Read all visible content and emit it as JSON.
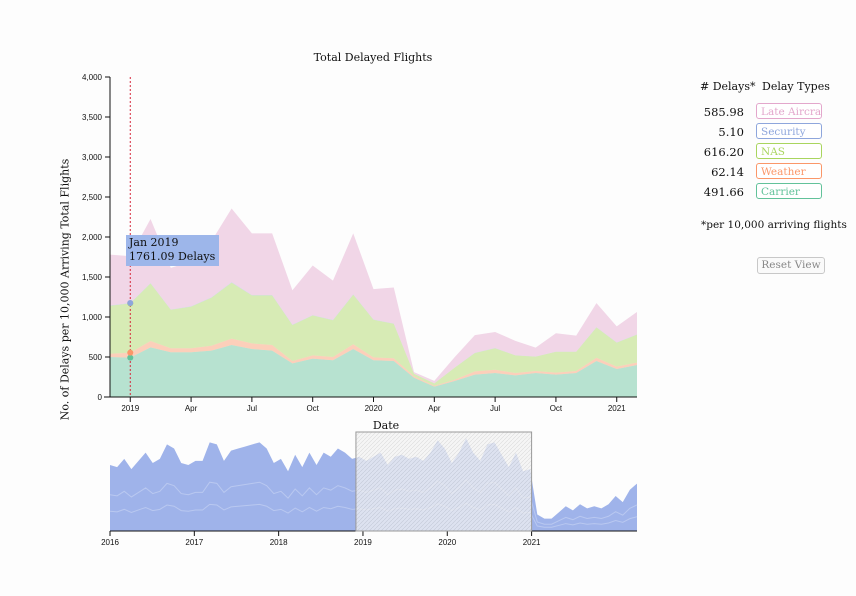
{
  "title": "Total Delayed Flights",
  "xlabel": "Date",
  "ylabel": "No. of Delays per 10,000 Arriving Total Flights",
  "legend": {
    "count_header": "# Delays*",
    "type_header": "Delay Types",
    "items": [
      {
        "label": "Late Aircraft",
        "count": "585.98",
        "color": "#e3a7cc"
      },
      {
        "label": "Security",
        "count": "5.10",
        "color": "#8ea6dc"
      },
      {
        "label": "NAS",
        "count": "616.20",
        "color": "#a9d55e"
      },
      {
        "label": "Weather",
        "count": "62.14",
        "color": "#fb9769"
      },
      {
        "label": "Carrier",
        "count": "491.66",
        "color": "#62c29a"
      }
    ],
    "footnote": "*per 10,000 arriving flights"
  },
  "reset_label": "Reset View",
  "tooltip": {
    "date": "Jan 2019",
    "value": "1761.09 Delays"
  },
  "chart_data": [
    {
      "type": "area",
      "title": "Total Delayed Flights",
      "xlabel": "Date",
      "ylabel": "No. of Delays per 10,000 Arriving Total Flights",
      "stacked": true,
      "x": [
        "2018-12",
        "2019-01",
        "2019-02",
        "2019-03",
        "2019-04",
        "2019-05",
        "2019-06",
        "2019-07",
        "2019-08",
        "2019-09",
        "2019-10",
        "2019-11",
        "2019-12",
        "2020-01",
        "2020-02",
        "2020-03",
        "2020-04",
        "2020-05",
        "2020-06",
        "2020-07",
        "2020-08",
        "2020-09",
        "2020-10",
        "2020-11",
        "2020-12",
        "2021-01",
        "2021-02"
      ],
      "x_ticks": [
        "2019",
        "Apr",
        "Jul",
        "Oct",
        "2020",
        "Apr",
        "Jul",
        "Oct",
        "2021"
      ],
      "y_ticks": [
        "0",
        "500",
        "1,000",
        "1,500",
        "2,000",
        "2,500",
        "3,000",
        "3,500",
        "4,000"
      ],
      "ylim": [
        0,
        4000
      ],
      "series": [
        {
          "name": "Carrier",
          "values": [
            500,
            492,
            620,
            560,
            560,
            580,
            650,
            600,
            580,
            420,
            480,
            460,
            600,
            460,
            450,
            240,
            130,
            200,
            280,
            300,
            270,
            300,
            280,
            300,
            450,
            350,
            400
          ]
        },
        {
          "name": "Weather",
          "values": [
            40,
            62,
            80,
            50,
            50,
            60,
            80,
            70,
            70,
            30,
            40,
            40,
            60,
            35,
            35,
            20,
            10,
            15,
            40,
            40,
            30,
            25,
            25,
            25,
            40,
            30,
            30
          ]
        },
        {
          "name": "NAS",
          "values": [
            600,
            616,
            720,
            480,
            520,
            600,
            700,
            600,
            620,
            450,
            500,
            460,
            620,
            470,
            430,
            30,
            30,
            150,
            230,
            270,
            220,
            180,
            260,
            240,
            380,
            300,
            350
          ]
        },
        {
          "name": "Security",
          "values": [
            5,
            5,
            5,
            4,
            4,
            5,
            6,
            5,
            5,
            4,
            4,
            4,
            5,
            4,
            4,
            1,
            1,
            2,
            3,
            3,
            2,
            2,
            2,
            2,
            3,
            3,
            3
          ]
        },
        {
          "name": "Late Aircraft",
          "values": [
            635,
            586,
            800,
            520,
            560,
            700,
            920,
            770,
            770,
            430,
            620,
            490,
            760,
            380,
            450,
            20,
            30,
            130,
            220,
            200,
            180,
            110,
            230,
            200,
            300,
            200,
            280
          ]
        }
      ],
      "highlight": {
        "x": "2019-01",
        "total": 1761.09
      },
      "grid": false
    },
    {
      "type": "area",
      "xlabel": "",
      "x_ticks": [
        "2016",
        "2017",
        "2018",
        "2019",
        "2020",
        "2021"
      ],
      "brush": {
        "from": "2018-12",
        "to": "2021-01"
      },
      "values": [
        1600,
        1550,
        1750,
        1500,
        1700,
        1900,
        1650,
        1750,
        2100,
        2000,
        1650,
        1600,
        1700,
        1700,
        2150,
        2100,
        1700,
        1950,
        2000,
        2050,
        2100,
        2150,
        2000,
        1650,
        1750,
        1450,
        1850,
        1550,
        1900,
        1600,
        1900,
        1800,
        2000,
        1900,
        1750,
        1800,
        1700,
        1800,
        1900,
        1600,
        1800,
        1850,
        1750,
        1800,
        1700,
        1900,
        2200,
        2000,
        1650,
        1900,
        2250,
        1900,
        1700,
        2100,
        2150,
        1850,
        1550,
        1900,
        1450,
        1500,
        400,
        300,
        300,
        450,
        600,
        500,
        650,
        550,
        600,
        550,
        650,
        850,
        700,
        1000,
        1150
      ]
    }
  ]
}
